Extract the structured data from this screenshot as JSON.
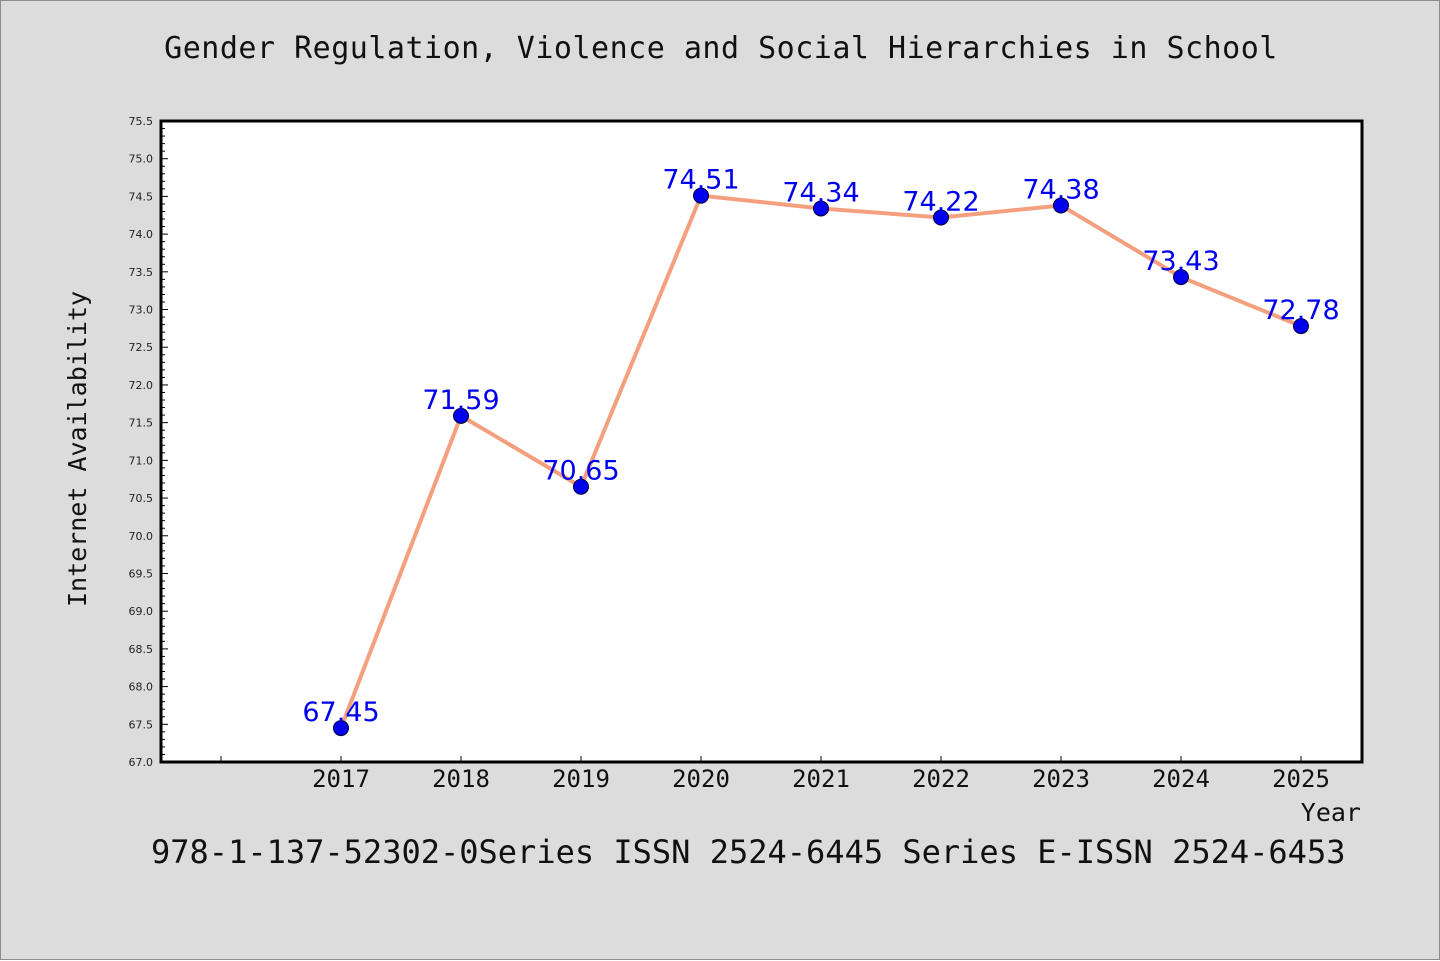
{
  "chart_data": {
    "type": "line",
    "title": "Gender Regulation, Violence and Social Hierarchies in School",
    "xlabel": "Year",
    "ylabel": "Internet Availability",
    "x": [
      "2017",
      "2018",
      "2019",
      "2020",
      "2021",
      "2022",
      "2023",
      "2024",
      "2025"
    ],
    "series": [
      {
        "values": [
          67.45,
          71.59,
          70.65,
          74.51,
          74.34,
          74.22,
          74.38,
          73.43,
          72.78
        ],
        "data_labels": [
          "67.45",
          "71.59",
          "70.65",
          "74.51",
          "74.34",
          "74.22",
          "74.38",
          "73.43",
          "72.78"
        ]
      }
    ],
    "ylim": [
      67.0,
      75.5
    ],
    "yticks": [
      "67.0",
      "67.5",
      "68.0",
      "68.5",
      "69.0",
      "69.5",
      "70.0",
      "70.5",
      "71.0",
      "71.5",
      "72.0",
      "72.5",
      "73.0",
      "73.5",
      "74.0",
      "74.5",
      "75.0",
      "75.5"
    ],
    "grid": false,
    "legend": "none",
    "colors": {
      "line": "#f4a07f",
      "marker": "#0000ee",
      "label": "#0000ee",
      "background": "#dcdcdc",
      "plot_background": "#ffffff"
    }
  },
  "footer": {
    "text": "978-1-137-52302-0Series ISSN 2524-6445 Series E-ISSN 2524-6453"
  }
}
